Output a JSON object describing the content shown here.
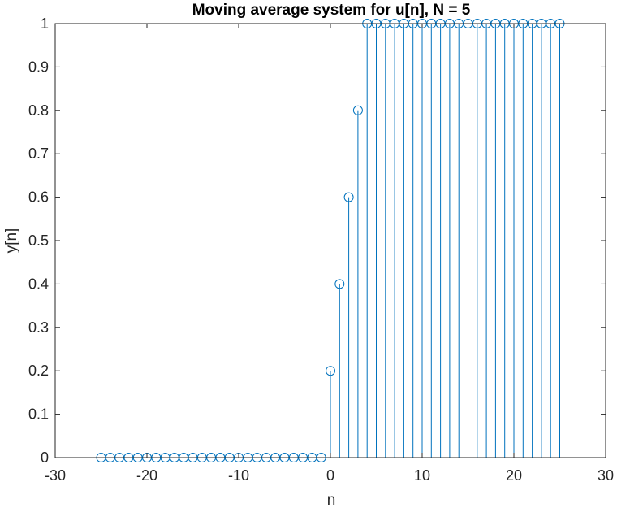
{
  "chart_data": {
    "type": "stem",
    "title": "Moving average system for u[n], N = 5",
    "xlabel": "n",
    "ylabel": "y[n]",
    "xlim": [
      -30,
      30
    ],
    "ylim": [
      0,
      1
    ],
    "xticks": [
      -30,
      -20,
      -10,
      0,
      10,
      20,
      30
    ],
    "yticks": [
      0,
      0.1,
      0.2,
      0.3,
      0.4,
      0.5,
      0.6,
      0.7,
      0.8,
      0.9,
      1
    ],
    "xtick_labels": [
      "-30",
      "-20",
      "-10",
      "0",
      "10",
      "20",
      "30"
    ],
    "ytick_labels": [
      "0",
      "0.1",
      "0.2",
      "0.3",
      "0.4",
      "0.5",
      "0.6",
      "0.7",
      "0.8",
      "0.9",
      "1"
    ],
    "grid": false,
    "color": "#0072BD",
    "marker": "circle",
    "x": [
      -25,
      -24,
      -23,
      -22,
      -21,
      -20,
      -19,
      -18,
      -17,
      -16,
      -15,
      -14,
      -13,
      -12,
      -11,
      -10,
      -9,
      -8,
      -7,
      -6,
      -5,
      -4,
      -3,
      -2,
      -1,
      0,
      1,
      2,
      3,
      4,
      5,
      6,
      7,
      8,
      9,
      10,
      11,
      12,
      13,
      14,
      15,
      16,
      17,
      18,
      19,
      20,
      21,
      22,
      23,
      24,
      25
    ],
    "y": [
      0,
      0,
      0,
      0,
      0,
      0,
      0,
      0,
      0,
      0,
      0,
      0,
      0,
      0,
      0,
      0,
      0,
      0,
      0,
      0,
      0,
      0,
      0,
      0,
      0,
      0.2,
      0.4,
      0.6,
      0.8,
      1,
      1,
      1,
      1,
      1,
      1,
      1,
      1,
      1,
      1,
      1,
      1,
      1,
      1,
      1,
      1,
      1,
      1,
      1,
      1,
      1,
      1
    ]
  }
}
